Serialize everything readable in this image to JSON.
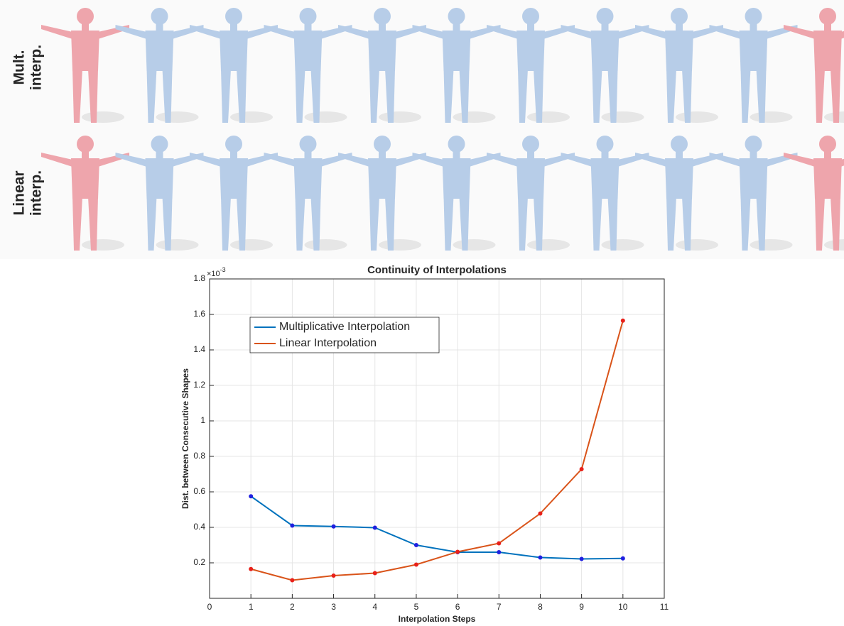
{
  "panel": {
    "row_labels": [
      [
        "Mult.",
        "interp."
      ],
      [
        "Linear",
        "interp."
      ]
    ]
  },
  "chart_data": {
    "type": "line",
    "title": "Continuity of Interpolations",
    "x_label": "Interpolation Steps",
    "y_label": "Dist. between Consecutive Shapes",
    "y_multiplier": {
      "base": "×10",
      "exponent": "-3"
    },
    "x": [
      1,
      2,
      3,
      4,
      5,
      6,
      7,
      8,
      9,
      10
    ],
    "series": [
      {
        "name": "Multiplicative Interpolation",
        "color": "#0072bd",
        "marker_color": "#1f1fe0",
        "values": [
          0.575,
          0.41,
          0.405,
          0.398,
          0.3,
          0.26,
          0.26,
          0.23,
          0.222,
          0.225
        ]
      },
      {
        "name": "Linear Interpolation",
        "color": "#d95319",
        "marker_color": "#e8201a",
        "values": [
          0.165,
          0.102,
          0.128,
          0.142,
          0.19,
          0.262,
          0.31,
          0.478,
          0.728,
          1.565
        ]
      }
    ],
    "xlim": [
      0,
      11
    ],
    "xticks": [
      0,
      1,
      2,
      3,
      4,
      5,
      6,
      7,
      8,
      9,
      10,
      11
    ],
    "ylim": [
      0,
      1.8
    ],
    "yticks": [
      0.2,
      0.4,
      0.6,
      0.8,
      1,
      1.2,
      1.4,
      1.6,
      1.8
    ],
    "grid": true,
    "legend": "upper-left"
  }
}
